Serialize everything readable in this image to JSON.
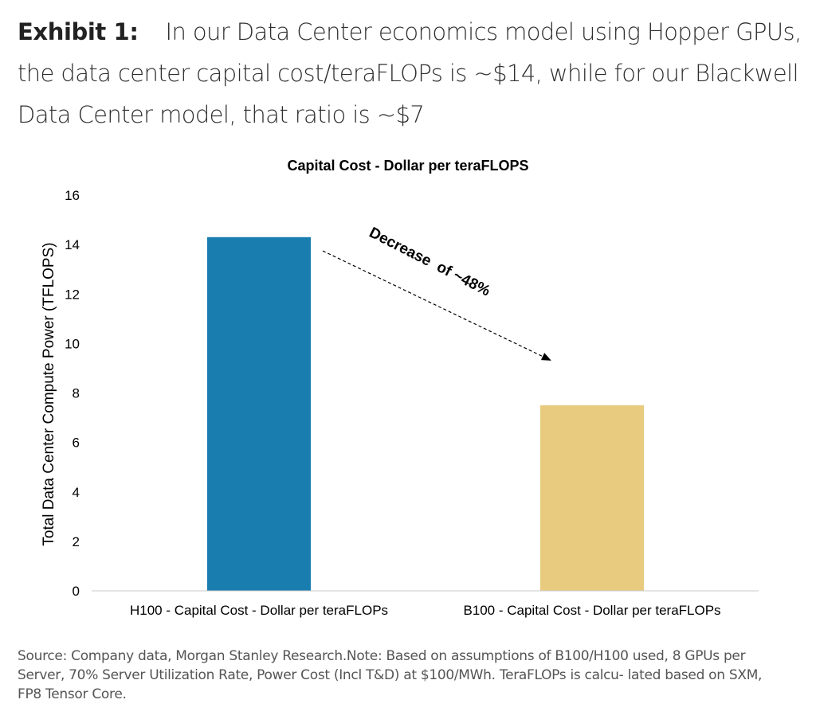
{
  "exhibit": {
    "label": "Exhibit 1:",
    "headline": "In our Data Center economics model using Hopper GPUs, the data center capital cost/teraFLOPs is ~$14, while for our Blackwell Data Center model, that ratio is ~$7"
  },
  "chart_data": {
    "type": "bar",
    "title": "Capital Cost - Dollar per teraFLOPS",
    "xlabel": "",
    "ylabel": "Total Data Center Compute Power (TFLOPS)",
    "categories": [
      "H100 - Capital Cost - Dollar per teraFLOPs",
      "B100 - Capital Cost - Dollar per teraFLOPs"
    ],
    "values": [
      14.3,
      7.5
    ],
    "bar_colors": [
      "#1a7db0",
      "#e8cb7e"
    ],
    "ylim": [
      0,
      16
    ],
    "yticks": [
      0,
      2,
      4,
      6,
      8,
      10,
      12,
      14,
      16
    ],
    "grid": false,
    "legend": "none",
    "annotation": {
      "text": "Decrease  of ~48%",
      "style": "dashed-arrow"
    }
  },
  "source": "Source: Company data, Morgan Stanley Research.Note: Based on assumptions of B100/H100 used, 8 GPUs per Server, 70% Server Utilization Rate, Power Cost (Incl T&D) at $100/MWh. TeraFLOPs is calcu- lated based on SXM, FP8 Tensor Core."
}
